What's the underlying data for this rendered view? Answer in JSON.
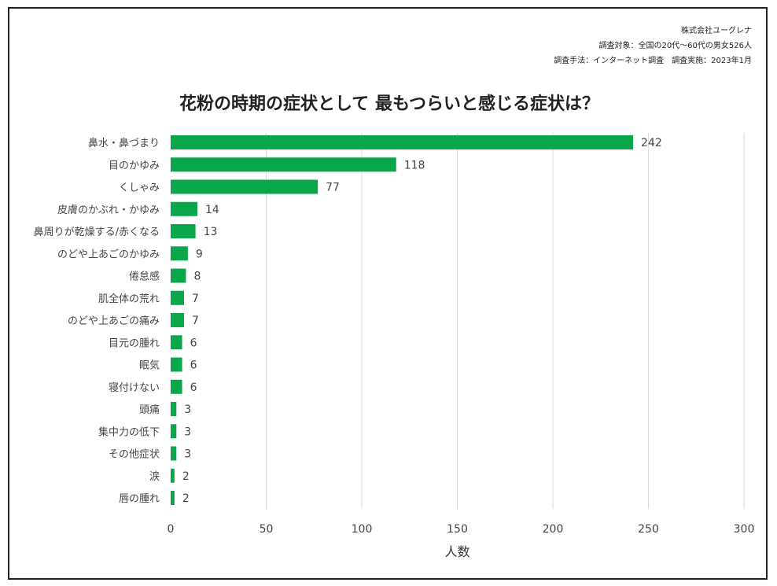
{
  "header": {
    "company": "株式会社ユーグレナ",
    "target": "調査対象：全国の20代〜60代の男女526人",
    "method": "調査手法：インターネット調査　調査実施：2023年1月"
  },
  "colors": {
    "bar": "#0aa64a",
    "grid": "#d9d9d9",
    "text": "#444444"
  },
  "chart_data": {
    "type": "bar",
    "orientation": "horizontal",
    "title": "花粉の時期の症状として 最もつらいと感じる症状は？",
    "xlabel": "人数",
    "ylabel": "",
    "xlim": [
      0,
      300
    ],
    "xticks": [
      0,
      50,
      100,
      150,
      200,
      250,
      300
    ],
    "grid": true,
    "categories": [
      "鼻水・鼻づまり",
      "目のかゆみ",
      "くしゃみ",
      "皮膚のかぶれ・かゆみ",
      "鼻周りが乾燥する/赤くなる",
      "のどや上あごのかゆみ",
      "倦怠感",
      "肌全体の荒れ",
      "のどや上あごの痛み",
      "目元の腫れ",
      "眠気",
      "寝付けない",
      "頭痛",
      "集中力の低下",
      "その他症状",
      "涙",
      "唇の腫れ"
    ],
    "values": [
      242,
      118,
      77,
      14,
      13,
      9,
      8,
      7,
      7,
      6,
      6,
      6,
      3,
      3,
      3,
      2,
      2
    ]
  }
}
